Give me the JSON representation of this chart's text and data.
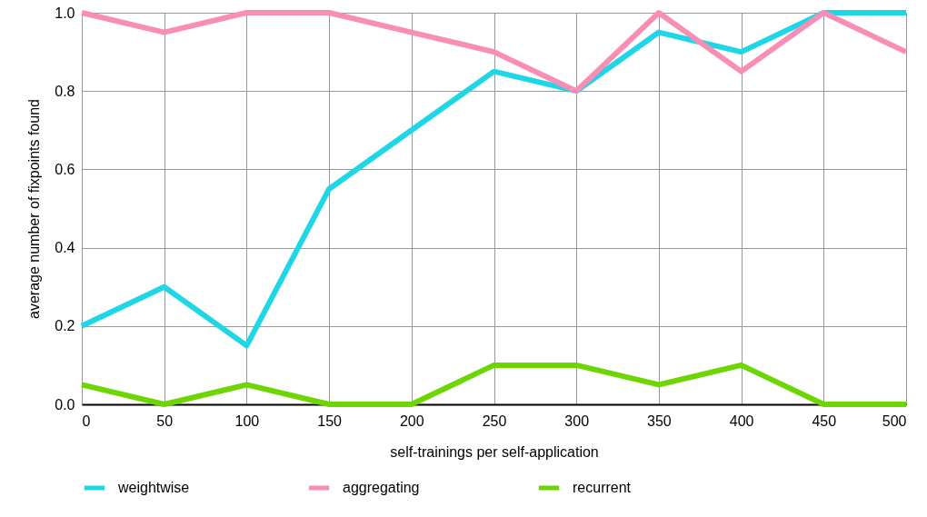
{
  "chart_data": {
    "type": "line",
    "xlabel": "self-trainings per self-application",
    "ylabel": "average number of fixpoints found",
    "x": [
      0,
      50,
      100,
      150,
      200,
      250,
      300,
      350,
      400,
      450,
      500
    ],
    "series": [
      {
        "name": "weightwise",
        "color": "#1ed6e6",
        "values": [
          0.2,
          0.3,
          0.15,
          0.55,
          0.7,
          0.85,
          0.8,
          0.95,
          0.9,
          1.0,
          1.0
        ]
      },
      {
        "name": "aggregating",
        "color": "#f98eb5",
        "values": [
          1.0,
          0.95,
          1.0,
          1.0,
          0.95,
          0.9,
          0.8,
          1.0,
          0.85,
          1.0,
          0.9
        ]
      },
      {
        "name": "recurrent",
        "color": "#6dd500",
        "values": [
          0.05,
          0,
          0.05,
          0,
          0,
          0.1,
          0.1,
          0.05,
          0.1,
          0,
          0
        ]
      }
    ],
    "xlim": [
      0,
      500
    ],
    "xticks": [
      0,
      50,
      100,
      150,
      200,
      250,
      300,
      350,
      400,
      450,
      500
    ],
    "ylim": [
      0,
      1
    ],
    "yticks": [
      {
        "value": 0,
        "label": "0.0"
      },
      {
        "value": 0.2,
        "label": "0.2"
      },
      {
        "value": 0.4,
        "label": "0.4"
      },
      {
        "value": 0.6,
        "label": "0.6"
      },
      {
        "value": 0.8,
        "label": "0.8"
      },
      {
        "value": 1,
        "label": "1.0"
      }
    ],
    "grid": true,
    "legend": "bottom",
    "marker": "none",
    "line_style": "solid"
  }
}
